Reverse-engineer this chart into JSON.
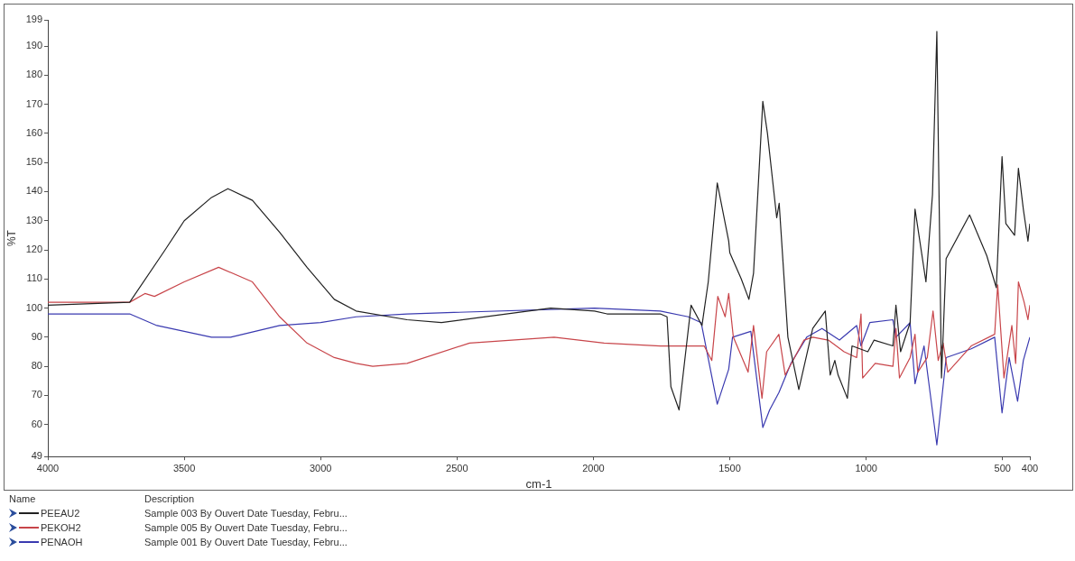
{
  "chart_data": {
    "type": "line",
    "xlabel": "cm-1",
    "ylabel": "%T",
    "legend": "bottom left",
    "legend_title": "Name",
    "marker": "none",
    "grid": false,
    "xlim": [
      4000,
      400
    ],
    "xticks": [
      4000,
      3500,
      3000,
      2500,
      2000,
      1500,
      1000,
      500,
      400
    ],
    "ylim": [
      49,
      199
    ],
    "yticks": [
      49,
      60,
      70,
      80,
      90,
      100,
      110,
      120,
      130,
      140,
      150,
      160,
      170,
      180,
      190,
      199
    ],
    "annotations": [
      "Description",
      "Sample 003 By Ouvert Date Tuesday, Febru...",
      "Sample 005 By Ouvert Date Tuesday, Febru...",
      "Sample 001 By Ouvert Date Tuesday, Febru..."
    ],
    "series": [
      {
        "name": "PEEAU2",
        "color": "#222222",
        "x": [
          4000,
          3700,
          3570,
          3500,
          3400,
          3340,
          3250,
          3150,
          3050,
          2950,
          2870,
          2683,
          2557,
          2157,
          1996,
          1950,
          1755,
          1730,
          1716,
          1686,
          1642,
          1602,
          1579,
          1546,
          1504,
          1500,
          1458,
          1430,
          1413,
          1379,
          1362,
          1328,
          1319,
          1287,
          1247,
          1196,
          1150,
          1132,
          1115,
          1103,
          1069,
          1052,
          994,
          971,
          902,
          891,
          874,
          839,
          821,
          781,
          757,
          741,
          724,
          707,
          621,
          558,
          523,
          502,
          488,
          456,
          442,
          424,
          407,
          400
        ],
        "values": [
          101,
          102,
          120,
          130,
          138,
          141,
          137,
          126,
          114,
          103,
          99,
          96,
          95,
          100,
          99,
          98,
          98,
          97,
          73,
          65,
          101,
          94,
          109,
          143,
          123,
          119,
          110,
          103,
          112,
          171,
          160,
          131,
          136,
          90,
          72,
          93,
          99,
          77,
          82,
          77,
          69,
          87,
          85,
          89,
          87,
          101,
          85,
          95,
          134,
          109,
          139,
          195,
          76,
          117,
          132,
          118,
          107,
          152,
          129,
          125,
          148,
          134,
          123,
          129
        ]
      },
      {
        "name": "PEKOH2",
        "color": "#c8454a",
        "x": [
          4000,
          3700,
          3644,
          3609,
          3500,
          3374,
          3250,
          3150,
          3050,
          2950,
          2870,
          2809,
          2683,
          2454,
          2144,
          1961,
          1755,
          1594,
          1566,
          1544,
          1517,
          1504,
          1487,
          1433,
          1413,
          1382,
          1365,
          1320,
          1297,
          1228,
          1196,
          1139,
          1081,
          1035,
          1019,
          1013,
          967,
          902,
          891,
          878,
          839,
          821,
          811,
          776,
          755,
          736,
          718,
          701,
          615,
          529,
          518,
          495,
          466,
          452,
          442,
          421,
          407,
          400
        ],
        "values": [
          102,
          102,
          105,
          104,
          109,
          114,
          109,
          97,
          88,
          83,
          81,
          80,
          81,
          88,
          90,
          88,
          87,
          87,
          82,
          104,
          97,
          105,
          90,
          78,
          94,
          69,
          85,
          91,
          77,
          89,
          90,
          89,
          85,
          83,
          98,
          76,
          81,
          80,
          93,
          76,
          83,
          91,
          78,
          83,
          99,
          82,
          88,
          78,
          87,
          91,
          108,
          76,
          94,
          81,
          109,
          102,
          96,
          101
        ]
      },
      {
        "name": "PENAOH",
        "color": "#3a3ab0",
        "x": [
          4000,
          3700,
          3600,
          3400,
          3330,
          3150,
          3000,
          2870,
          2683,
          1996,
          1755,
          1652,
          1605,
          1546,
          1504,
          1490,
          1423,
          1379,
          1354,
          1320,
          1276,
          1218,
          1162,
          1098,
          1035,
          1019,
          987,
          902,
          891,
          839,
          821,
          788,
          741,
          707,
          615,
          529,
          502,
          476,
          445,
          424,
          400
        ],
        "values": [
          98,
          98,
          94,
          90,
          90,
          94,
          95,
          97,
          98,
          100,
          99,
          97,
          95,
          67,
          79,
          90,
          92,
          59,
          65,
          71,
          81,
          90,
          93,
          89,
          94,
          87,
          95,
          96,
          90,
          95,
          74,
          87,
          53,
          83,
          86,
          90,
          64,
          83,
          68,
          82,
          90
        ]
      }
    ]
  }
}
